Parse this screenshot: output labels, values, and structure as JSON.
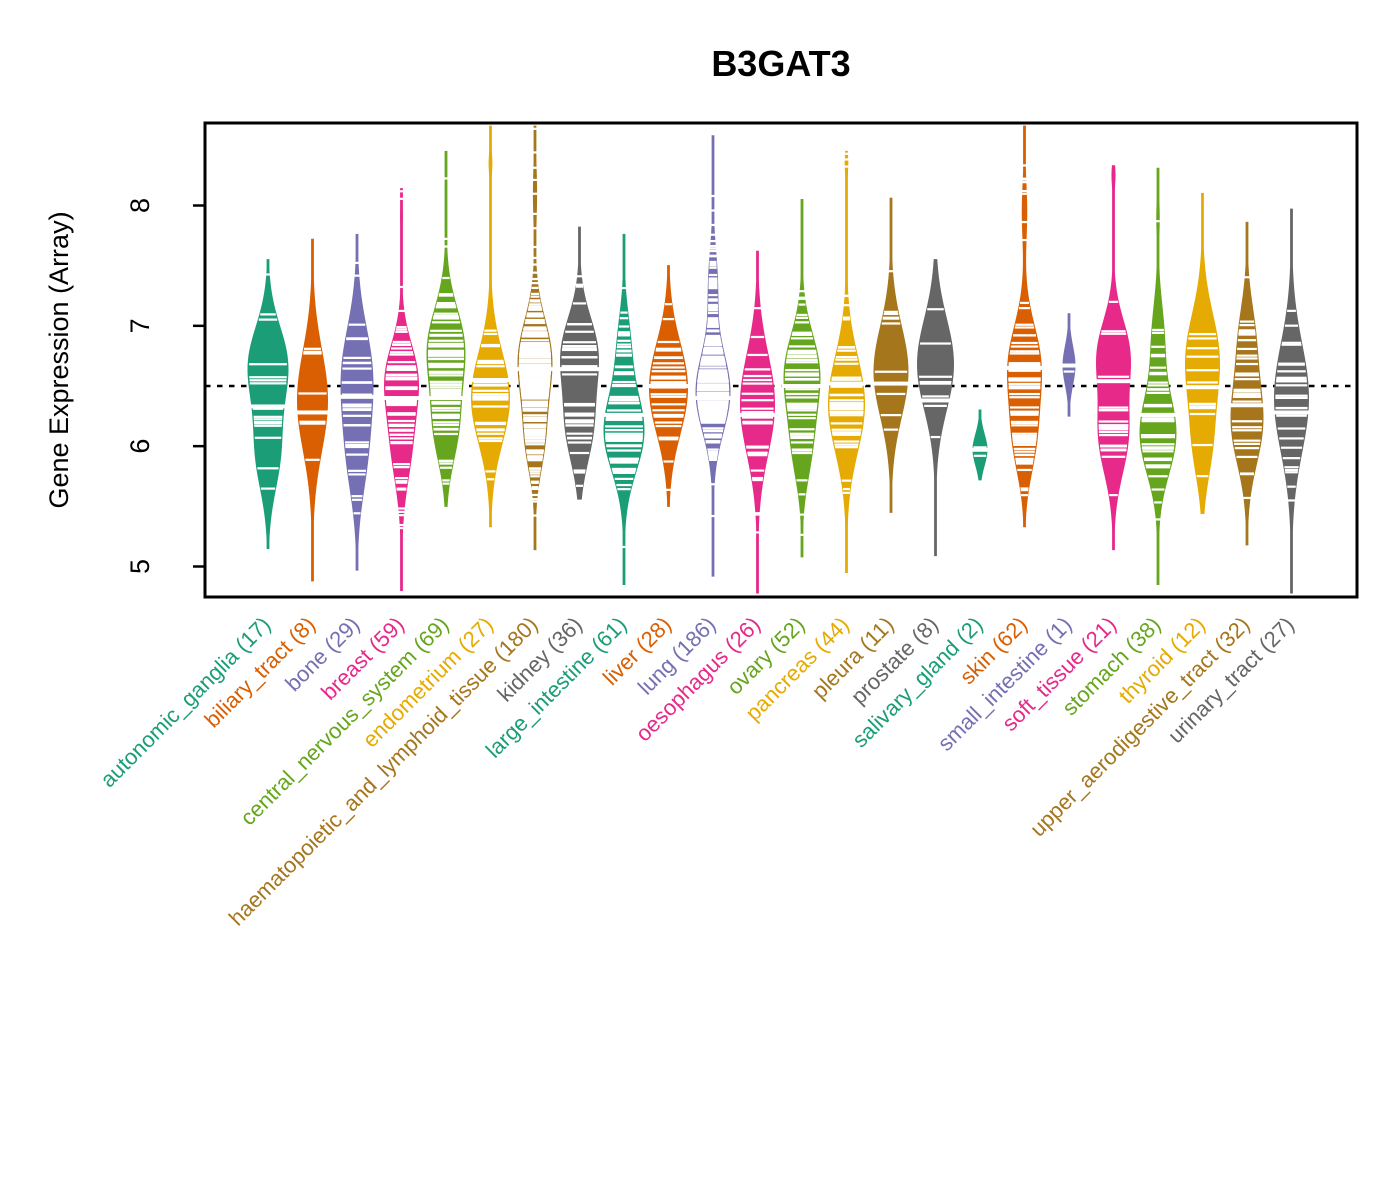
{
  "title": "B3GAT3",
  "y_axis": {
    "label": "Gene Expression (Array)",
    "ticks": [
      5,
      6,
      7,
      8
    ]
  },
  "reference_line_value": 6.5,
  "palette": [
    "#1B9E77",
    "#D95F02",
    "#7570B3",
    "#E7298A",
    "#66A61E",
    "#E6AB02",
    "#A6761D",
    "#666666"
  ],
  "chart_data": {
    "type": "violin",
    "title": "B3GAT3",
    "ylabel": "Gene Expression (Array)",
    "yticks": [
      5,
      6,
      7,
      8
    ],
    "ylim": [
      4.75,
      8.68
    ],
    "reference_line_y": 6.5,
    "grid": false,
    "legend": "none",
    "tick_color": "#ffffff",
    "groups": [
      {
        "name": "autonomic_ganglia",
        "count": 17,
        "label": "autonomic_ganglia (17)",
        "color": "#1B9E77",
        "min": 5.15,
        "max": 7.55,
        "median": 6.33,
        "maxw": 20,
        "modes": [
          {
            "mu": 6.68,
            "s": 0.32,
            "w": 0.62
          },
          {
            "mu": 5.95,
            "s": 0.32,
            "w": 0.38
          }
        ]
      },
      {
        "name": "biliary_tract",
        "count": 8,
        "label": "biliary_tract (8)",
        "color": "#D95F02",
        "min": 4.88,
        "max": 7.72,
        "median": 6.28,
        "maxw": 15,
        "modes": [
          {
            "mu": 6.38,
            "s": 0.42,
            "w": 1
          }
        ]
      },
      {
        "name": "bone",
        "count": 29,
        "label": "bone (29)",
        "color": "#7570B3",
        "min": 4.97,
        "max": 7.76,
        "median": 6.41,
        "maxw": 16,
        "modes": [
          {
            "mu": 6.6,
            "s": 0.4,
            "w": 0.65
          },
          {
            "mu": 5.9,
            "s": 0.35,
            "w": 0.35
          }
        ]
      },
      {
        "name": "breast",
        "count": 59,
        "label": "breast (59)",
        "color": "#E7298A",
        "min": 4.8,
        "max": 8.14,
        "median": 6.4,
        "maxw": 17,
        "modes": [
          {
            "mu": 6.6,
            "s": 0.28,
            "w": 0.55
          },
          {
            "mu": 6.05,
            "s": 0.35,
            "w": 0.41
          },
          {
            "mu": 7.9,
            "s": 0.12,
            "w": 0.04
          }
        ]
      },
      {
        "name": "central_nervous_system",
        "count": 69,
        "label": "central_nervous_system (69)",
        "color": "#66A61E",
        "min": 5.5,
        "max": 8.45,
        "median": 6.4,
        "maxw": 19,
        "modes": [
          {
            "mu": 6.82,
            "s": 0.33,
            "w": 0.6
          },
          {
            "mu": 6.15,
            "s": 0.3,
            "w": 0.37
          },
          {
            "mu": 8.2,
            "s": 0.12,
            "w": 0.03
          }
        ]
      },
      {
        "name": "endometrium",
        "count": 27,
        "label": "endometrium (27)",
        "color": "#E6AB02",
        "min": 5.33,
        "max": 8.66,
        "median": 6.55,
        "maxw": 19,
        "modes": [
          {
            "mu": 6.4,
            "s": 0.38,
            "w": 0.93
          },
          {
            "mu": 8.35,
            "s": 0.09,
            "w": 0.07
          }
        ]
      },
      {
        "name": "haematopoietic_and_lymphoid_tissue",
        "count": 180,
        "label": "haematopoietic_and_lymphoid_tissue (180)",
        "color": "#A6761D",
        "min": 5.14,
        "max": 8.66,
        "median": 6.64,
        "maxw": 17,
        "modes": [
          {
            "mu": 6.72,
            "s": 0.33,
            "w": 0.62
          },
          {
            "mu": 6.05,
            "s": 0.28,
            "w": 0.32
          },
          {
            "mu": 8.1,
            "s": 0.25,
            "w": 0.06
          }
        ]
      },
      {
        "name": "kidney",
        "count": 36,
        "label": "kidney (36)",
        "color": "#666666",
        "min": 5.56,
        "max": 7.82,
        "median": 6.64,
        "maxw": 19,
        "modes": [
          {
            "mu": 6.78,
            "s": 0.3,
            "w": 0.58
          },
          {
            "mu": 6.15,
            "s": 0.3,
            "w": 0.42
          }
        ]
      },
      {
        "name": "large_intestine",
        "count": 61,
        "label": "large_intestine (61)",
        "color": "#1B9E77",
        "min": 4.85,
        "max": 7.76,
        "median": 6.26,
        "maxw": 20,
        "modes": [
          {
            "mu": 6.12,
            "s": 0.33,
            "w": 0.78
          },
          {
            "mu": 6.85,
            "s": 0.28,
            "w": 0.22
          }
        ]
      },
      {
        "name": "liver",
        "count": 28,
        "label": "liver (28)",
        "color": "#D95F02",
        "min": 5.5,
        "max": 7.5,
        "median": 6.5,
        "maxw": 19,
        "modes": [
          {
            "mu": 6.48,
            "s": 0.38,
            "w": 1
          }
        ]
      },
      {
        "name": "lung",
        "count": 186,
        "label": "lung (186)",
        "color": "#7570B3",
        "min": 4.92,
        "max": 8.58,
        "median": 6.4,
        "maxw": 17,
        "modes": [
          {
            "mu": 6.45,
            "s": 0.33,
            "w": 0.8
          },
          {
            "mu": 7.35,
            "s": 0.28,
            "w": 0.2
          }
        ]
      },
      {
        "name": "oesophagus",
        "count": 26,
        "label": "oesophagus (26)",
        "color": "#E7298A",
        "min": 4.78,
        "max": 7.62,
        "median": 6.26,
        "maxw": 17,
        "modes": [
          {
            "mu": 6.35,
            "s": 0.42,
            "w": 1
          }
        ]
      },
      {
        "name": "ovary",
        "count": 52,
        "label": "ovary (52)",
        "color": "#66A61E",
        "min": 5.08,
        "max": 8.05,
        "median": 6.5,
        "maxw": 18,
        "modes": [
          {
            "mu": 6.62,
            "s": 0.32,
            "w": 0.66
          },
          {
            "mu": 6.0,
            "s": 0.3,
            "w": 0.34
          }
        ]
      },
      {
        "name": "pancreas",
        "count": 44,
        "label": "pancreas (44)",
        "color": "#E6AB02",
        "min": 4.95,
        "max": 8.45,
        "median": 6.52,
        "maxw": 18,
        "modes": [
          {
            "mu": 6.35,
            "s": 0.4,
            "w": 0.93
          },
          {
            "mu": 8.35,
            "s": 0.09,
            "w": 0.07
          }
        ]
      },
      {
        "name": "pleura",
        "count": 11,
        "label": "pleura (11)",
        "color": "#A6761D",
        "min": 5.45,
        "max": 8.06,
        "median": 6.52,
        "maxw": 17,
        "modes": [
          {
            "mu": 6.62,
            "s": 0.38,
            "w": 1
          }
        ]
      },
      {
        "name": "prostate",
        "count": 8,
        "label": "prostate (8)",
        "color": "#666666",
        "min": 5.09,
        "max": 7.55,
        "median": 6.38,
        "maxw": 18,
        "modes": [
          {
            "mu": 6.68,
            "s": 0.38,
            "w": 1
          }
        ]
      },
      {
        "name": "salivary_gland",
        "count": 2,
        "label": "salivary_gland (2)",
        "color": "#1B9E77",
        "min": 5.72,
        "max": 6.3,
        "median": 5.97,
        "maxw": 7,
        "modes": [
          {
            "mu": 5.97,
            "s": 0.13,
            "w": 1
          }
        ]
      },
      {
        "name": "skin",
        "count": 62,
        "label": "skin (62)",
        "color": "#D95F02",
        "min": 5.33,
        "max": 8.66,
        "median": 6.65,
        "maxw": 17,
        "modes": [
          {
            "mu": 6.68,
            "s": 0.33,
            "w": 0.56
          },
          {
            "mu": 6.05,
            "s": 0.3,
            "w": 0.36
          },
          {
            "mu": 7.95,
            "s": 0.25,
            "w": 0.08
          }
        ]
      },
      {
        "name": "small_intestine",
        "count": 1,
        "label": "small_intestine (1)",
        "color": "#7570B3",
        "min": 6.25,
        "max": 7.1,
        "median": 6.67,
        "maxw": 6,
        "modes": [
          {
            "mu": 6.67,
            "s": 0.16,
            "w": 1
          }
        ]
      },
      {
        "name": "soft_tissue",
        "count": 21,
        "label": "soft_tissue (21)",
        "color": "#E7298A",
        "min": 5.14,
        "max": 8.33,
        "median": 6.54,
        "maxw": 17,
        "modes": [
          {
            "mu": 6.78,
            "s": 0.28,
            "w": 0.48
          },
          {
            "mu": 6.1,
            "s": 0.33,
            "w": 0.47
          },
          {
            "mu": 8.25,
            "s": 0.1,
            "w": 0.05
          }
        ]
      },
      {
        "name": "stomach",
        "count": 38,
        "label": "stomach (38)",
        "color": "#66A61E",
        "min": 4.85,
        "max": 8.31,
        "median": 6.26,
        "maxw": 18,
        "modes": [
          {
            "mu": 6.1,
            "s": 0.33,
            "w": 0.72
          },
          {
            "mu": 6.9,
            "s": 0.3,
            "w": 0.23
          },
          {
            "mu": 7.9,
            "s": 0.15,
            "w": 0.05
          }
        ]
      },
      {
        "name": "thyroid",
        "count": 12,
        "label": "thyroid (12)",
        "color": "#E6AB02",
        "min": 5.44,
        "max": 8.1,
        "median": 6.49,
        "maxw": 17,
        "modes": [
          {
            "mu": 6.72,
            "s": 0.38,
            "w": 0.68
          },
          {
            "mu": 6.0,
            "s": 0.3,
            "w": 0.32
          }
        ]
      },
      {
        "name": "upper_aerodigestive_tract",
        "count": 32,
        "label": "upper_aerodigestive_tract (32)",
        "color": "#A6761D",
        "min": 5.18,
        "max": 7.86,
        "median": 6.34,
        "maxw": 16,
        "modes": [
          {
            "mu": 6.2,
            "s": 0.35,
            "w": 0.68
          },
          {
            "mu": 6.9,
            "s": 0.3,
            "w": 0.32
          }
        ]
      },
      {
        "name": "urinary_tract",
        "count": 27,
        "label": "urinary_tract (27)",
        "color": "#666666",
        "min": 4.78,
        "max": 7.97,
        "median": 6.28,
        "maxw": 17,
        "modes": [
          {
            "mu": 6.4,
            "s": 0.45,
            "w": 1
          }
        ]
      }
    ]
  }
}
